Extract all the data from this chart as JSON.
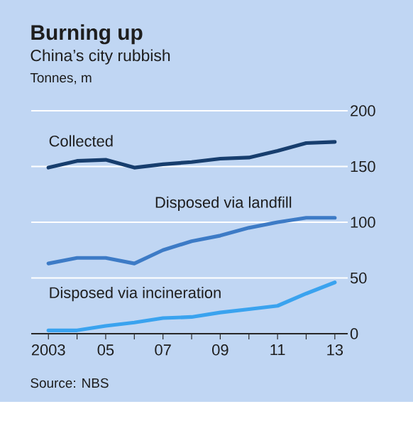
{
  "chart_data": {
    "type": "line",
    "title": "Burning up",
    "subtitle": "China’s city rubbish",
    "x": [
      2003,
      2004,
      2005,
      2006,
      2007,
      2008,
      2009,
      2010,
      2011,
      2012,
      2013
    ],
    "series": [
      {
        "name": "Collected",
        "color": "#173e6e",
        "values": [
          149,
          155,
          156,
          149,
          152,
          154,
          157,
          158,
          164,
          171,
          172
        ]
      },
      {
        "name": "Disposed via landfill",
        "color": "#3d7bc6",
        "values": [
          63,
          68,
          68,
          63,
          75,
          83,
          88,
          95,
          100,
          104,
          104
        ]
      },
      {
        "name": "Disposed via incineration",
        "color": "#3aa3ef",
        "values": [
          3,
          3,
          7,
          10,
          14,
          15,
          19,
          22,
          25,
          36,
          46
        ]
      }
    ],
    "xlim": [
      2002.4,
      2013.45
    ],
    "ylim": [
      0,
      200
    ],
    "xticks": [
      {
        "value": 2003,
        "label": "2003"
      },
      {
        "value": 2004,
        "label": null
      },
      {
        "value": 2005,
        "label": "05"
      },
      {
        "value": 2006,
        "label": null
      },
      {
        "value": 2007,
        "label": "07"
      },
      {
        "value": 2008,
        "label": null
      },
      {
        "value": 2009,
        "label": "09"
      },
      {
        "value": 2010,
        "label": null
      },
      {
        "value": 2011,
        "label": "11"
      },
      {
        "value": 2012,
        "label": null
      },
      {
        "value": 2013,
        "label": "13"
      }
    ],
    "yticks": [
      0,
      50,
      100,
      150,
      200
    ],
    "grid": "y",
    "legend": false,
    "marker": "none",
    "line_style": "solid",
    "annotations": [
      "Tonnes, m",
      "Source: NBS"
    ]
  }
}
